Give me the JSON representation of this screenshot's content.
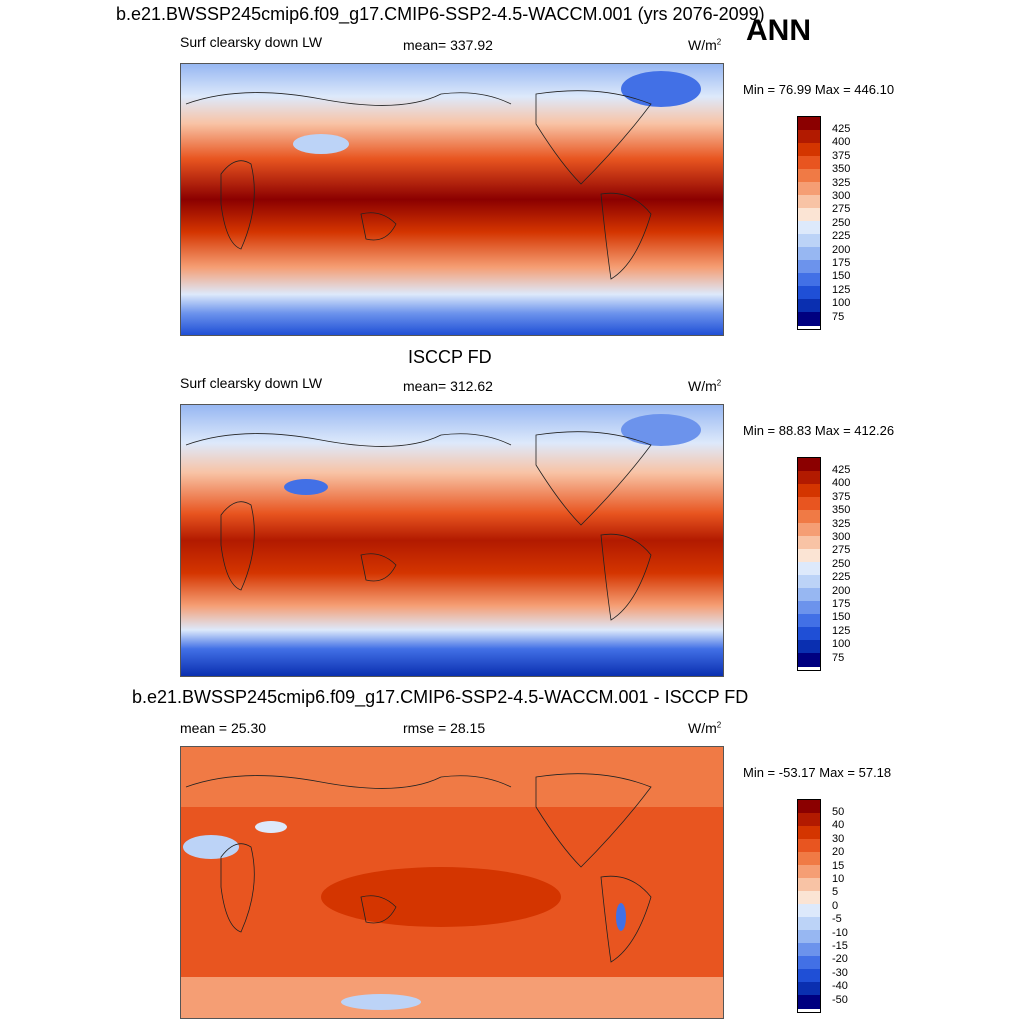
{
  "season": "ANN",
  "panels": [
    {
      "title": "b.e21.BWSSP245cmip6.f09_g17.CMIP6-SSP2-4.5-WACCM.001 (yrs 2076-2099)",
      "left_label": "Surf clearsky down LW",
      "center_label": "mean= 337.92",
      "units": "W/m",
      "units_sup": "2",
      "minmax": "Min =  76.99 Max = 446.10",
      "colorbar_labels": [
        "425",
        "400",
        "375",
        "350",
        "325",
        "300",
        "275",
        "250",
        "225",
        "200",
        "175",
        "150",
        "125",
        "100",
        "75"
      ],
      "map_icon": "world-map-field-icon"
    },
    {
      "title": "ISCCP FD",
      "left_label": "Surf clearsky down LW",
      "center_label": "mean= 312.62",
      "units": "W/m",
      "units_sup": "2",
      "minmax": "Min =  88.83 Max = 412.26",
      "colorbar_labels": [
        "425",
        "400",
        "375",
        "350",
        "325",
        "300",
        "275",
        "250",
        "225",
        "200",
        "175",
        "150",
        "125",
        "100",
        "75"
      ],
      "map_icon": "world-map-field-icon"
    },
    {
      "title": "b.e21.BWSSP245cmip6.f09_g17.CMIP6-SSP2-4.5-WACCM.001 - ISCCP FD",
      "left_label": "mean =  25.30",
      "center_label": "rmse =  28.15",
      "units": "W/m",
      "units_sup": "2",
      "minmax": "Min = -53.17 Max =  57.18",
      "colorbar_labels": [
        "50",
        "40",
        "30",
        "20",
        "15",
        "10",
        "5",
        "0",
        "-5",
        "-10",
        "-15",
        "-20",
        "-30",
        "-40",
        "-50"
      ],
      "map_icon": "world-map-difference-icon"
    }
  ],
  "colors": {
    "colorbar_scale": [
      "#8b0000",
      "#b21a00",
      "#d43500",
      "#e85520",
      "#f07a45",
      "#f59e74",
      "#f8c3a5",
      "#fbe4d4",
      "#dde9fb",
      "#bcd3f7",
      "#97b7f2",
      "#6c93ec",
      "#4270e6",
      "#1f4fd6",
      "#0a2fb0",
      "#000080"
    ],
    "coastline": "#222222"
  }
}
